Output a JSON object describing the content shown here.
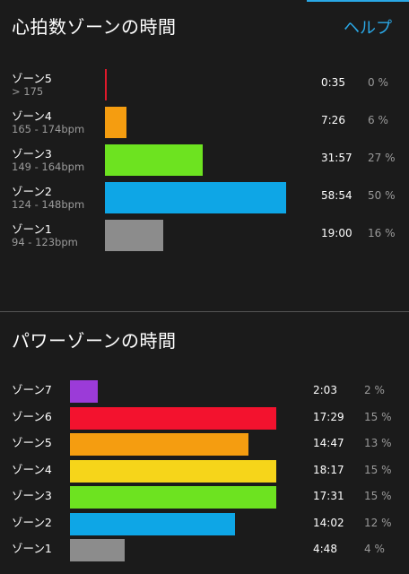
{
  "heart_rate": {
    "title": "心拍数ゾーンの時間",
    "help_label": "ヘルプ",
    "zones": [
      {
        "name": "ゾーン5",
        "range": "> 175",
        "time": "0:35",
        "percent": "0 %",
        "share": 0.004,
        "color": "#e0192b"
      },
      {
        "name": "ゾーン4",
        "range": "165 - 174bpm",
        "time": "7:26",
        "percent": "6 %",
        "share": 0.06,
        "color": "#f59d10"
      },
      {
        "name": "ゾーン3",
        "range": "149 - 164bpm",
        "time": "31:57",
        "percent": "27 %",
        "share": 0.27,
        "color": "#6de320"
      },
      {
        "name": "ゾーン2",
        "range": "124 - 148bpm",
        "time": "58:54",
        "percent": "50 %",
        "share": 0.5,
        "color": "#0ea6e6"
      },
      {
        "name": "ゾーン1",
        "range": "94 - 123bpm",
        "time": "19:00",
        "percent": "16 %",
        "share": 0.16,
        "color": "#8c8c8c"
      }
    ]
  },
  "power": {
    "title": "パワーゾーンの時間",
    "zones": [
      {
        "name": "ゾーン7",
        "time": "2:03",
        "percent": "2 %",
        "share": 0.02,
        "color": "#9b3bd8"
      },
      {
        "name": "ゾーン6",
        "time": "17:29",
        "percent": "15 %",
        "share": 0.15,
        "color": "#f3122e"
      },
      {
        "name": "ゾーン5",
        "time": "14:47",
        "percent": "13 %",
        "share": 0.13,
        "color": "#f59d10"
      },
      {
        "name": "ゾーン4",
        "time": "18:17",
        "percent": "15 %",
        "share": 0.15,
        "color": "#f6d51a"
      },
      {
        "name": "ゾーン3",
        "time": "17:31",
        "percent": "15 %",
        "share": 0.15,
        "color": "#6de320"
      },
      {
        "name": "ゾーン2",
        "time": "14:02",
        "percent": "12 %",
        "share": 0.12,
        "color": "#0ea6e6"
      },
      {
        "name": "ゾーン1",
        "time": "4:48",
        "percent": "4 %",
        "share": 0.04,
        "color": "#8c8c8c"
      }
    ]
  }
}
